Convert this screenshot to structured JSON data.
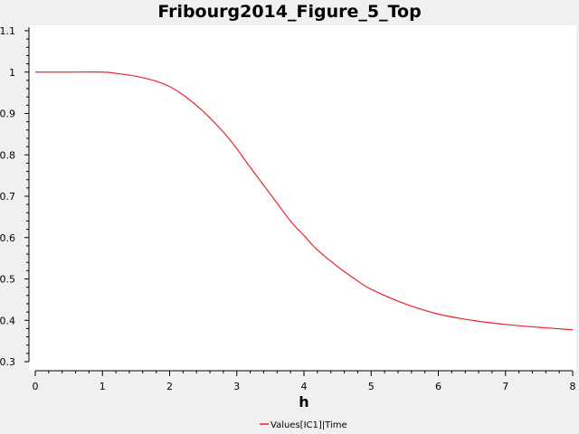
{
  "chart_data": {
    "type": "line",
    "title": "Fribourg2014_Figure_5_Top",
    "xlabel": "h",
    "ylabel": "",
    "xlim": [
      0,
      8
    ],
    "ylim": [
      0.3,
      1.1
    ],
    "xticks": [
      "0",
      "1",
      "2",
      "3",
      "4",
      "5",
      "6",
      "7",
      "8"
    ],
    "yticks": [
      "0.3",
      "0.4",
      "0.5",
      "0.6",
      "0.7",
      "0.8",
      "0.9",
      "1",
      "1.1"
    ],
    "grid": false,
    "legend_position": "bottom-center",
    "series": [
      {
        "name": "Values[IC1]|Time",
        "color": "#e8242c",
        "x": [
          0,
          0.5,
          1.0,
          1.2,
          1.5,
          1.8,
          2.0,
          2.2,
          2.5,
          2.8,
          3.0,
          3.2,
          3.5,
          3.8,
          4.0,
          4.2,
          4.5,
          4.8,
          5.0,
          5.5,
          6.0,
          6.5,
          7.0,
          7.5,
          8.0
        ],
        "y": [
          1.0,
          1.0,
          1.0,
          0.997,
          0.99,
          0.978,
          0.965,
          0.945,
          0.905,
          0.855,
          0.815,
          0.77,
          0.705,
          0.64,
          0.605,
          0.57,
          0.53,
          0.495,
          0.475,
          0.44,
          0.415,
          0.4,
          0.39,
          0.383,
          0.377
        ]
      }
    ]
  }
}
